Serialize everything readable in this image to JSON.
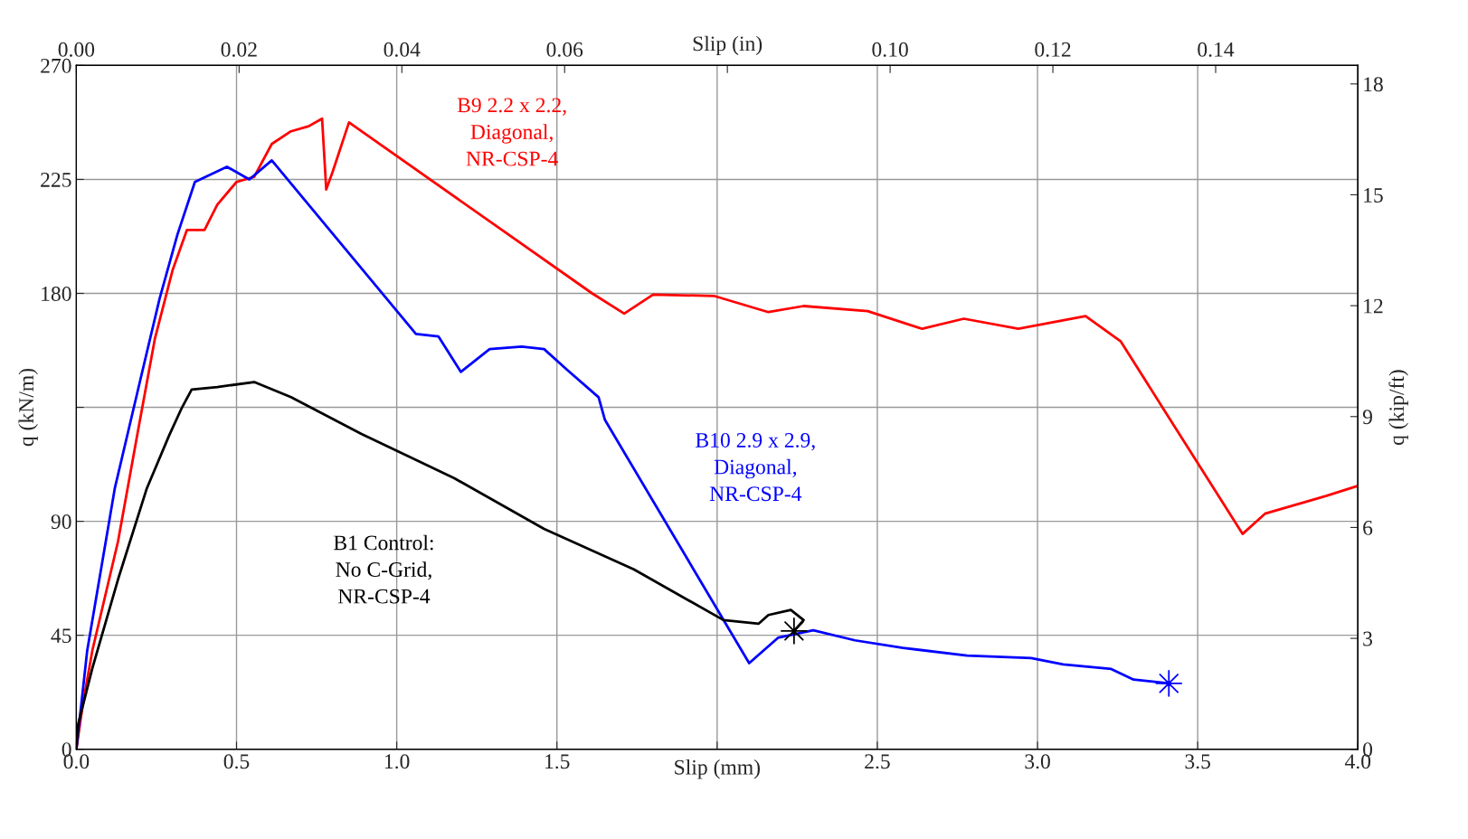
{
  "chart_data": {
    "type": "line",
    "xlabel": "Slip (mm)",
    "ylabel": "q (kN/m)",
    "x2label": "Slip (in)",
    "y2label": "q (kip/ft)",
    "xlim": [
      0,
      4.0
    ],
    "xticks": [
      {
        "value": 0,
        "label": "0.0"
      },
      {
        "value": 0.5,
        "label": "0.5"
      },
      {
        "value": 1.0,
        "label": "1.0"
      },
      {
        "value": 1.5,
        "label": "1.5"
      },
      {
        "value": 2.0,
        "label": null
      },
      {
        "value": 2.5,
        "label": "2.5"
      },
      {
        "value": 3.0,
        "label": "3.0"
      },
      {
        "value": 3.5,
        "label": "3.5"
      },
      {
        "value": 4.0,
        "label": "4.0"
      }
    ],
    "x2lim": [
      0,
      0.15748
    ],
    "x2ticks": [
      {
        "value": 0,
        "label": "0.00"
      },
      {
        "value": 0.02,
        "label": "0.02"
      },
      {
        "value": 0.04,
        "label": "0.04"
      },
      {
        "value": 0.06,
        "label": "0.06"
      },
      {
        "value": 0.08,
        "label": null
      },
      {
        "value": 0.1,
        "label": "0.10"
      },
      {
        "value": 0.12,
        "label": "0.12"
      },
      {
        "value": 0.14,
        "label": "0.14"
      }
    ],
    "ylim": [
      0,
      270
    ],
    "yticks": [
      0,
      45,
      90,
      {
        "value": 135,
        "label": null
      },
      180,
      225,
      270
    ],
    "y2lim": [
      0,
      18.5
    ],
    "y2ticks": [
      0,
      3,
      6,
      9,
      12,
      15,
      18
    ],
    "grid": true,
    "legend": false,
    "line_style": "solid",
    "series": [
      {
        "name": "B9 2.2 x 2.2,\nDiagonal,\nNR-CSP-4",
        "color": "#ff0000",
        "x": [
          0,
          0.02,
          0.05,
          0.13,
          0.19,
          0.245,
          0.3,
          0.345,
          0.4,
          0.44,
          0.5,
          0.555,
          0.61,
          0.67,
          0.725,
          0.767,
          0.78,
          0.8,
          0.851,
          1.61,
          1.71,
          1.8,
          1.99,
          2.16,
          2.27,
          2.47,
          2.64,
          2.77,
          2.94,
          3.15,
          3.26,
          3.4,
          3.64,
          3.71,
          3.9,
          4.0
        ],
        "values": [
          0,
          17.5,
          39,
          82,
          124,
          162,
          189,
          205,
          205,
          215,
          224,
          226,
          239,
          244,
          246,
          249,
          221,
          228,
          247.5,
          180,
          172,
          179.5,
          179,
          172.6,
          175,
          173,
          166,
          170,
          166,
          171,
          161,
          133,
          85,
          93,
          100,
          104
        ]
      },
      {
        "name": "B10 2.9 x 2.9,\nDiagonal,\nNR-CSP-4",
        "color": "#0000ff",
        "x": [
          0,
          0.034,
          0.12,
          0.2,
          0.26,
          0.315,
          0.37,
          0.47,
          0.54,
          0.61,
          1.06,
          1.13,
          1.2,
          1.29,
          1.39,
          1.46,
          1.53,
          1.63,
          1.65,
          2.1,
          2.19,
          2.3,
          2.43,
          2.58,
          2.78,
          2.98,
          3.08,
          3.23,
          3.3,
          3.41
        ],
        "values": [
          0,
          39,
          103,
          146,
          178,
          203,
          224,
          230,
          225,
          232.5,
          164,
          163,
          149,
          158,
          159,
          158,
          150,
          139,
          130,
          34,
          44,
          47,
          43,
          40,
          37,
          36,
          33.5,
          31.7,
          27.5,
          26
        ]
      },
      {
        "name": "B1 Control:\nNo C-Grid,\nNR-CSP-4",
        "color": "#000000",
        "x": [
          0,
          0.006,
          0.05,
          0.13,
          0.22,
          0.29,
          0.33,
          0.36,
          0.44,
          0.555,
          0.67,
          0.89,
          1.18,
          1.46,
          1.74,
          2.02,
          2.13,
          2.16,
          2.23,
          2.27,
          2.24
        ],
        "values": [
          0,
          10,
          32,
          67,
          103,
          124,
          135,
          142,
          143,
          145,
          139,
          124.5,
          107,
          87,
          71,
          51,
          49.6,
          53,
          55,
          51,
          46.7
        ]
      },
      {
        "type": "scatter",
        "marker": "cross",
        "color": "#000000",
        "x": [
          2.24
        ],
        "values": [
          46.7
        ]
      },
      {
        "type": "scatter",
        "marker": "cross",
        "color": "#0000ff",
        "x": [
          3.41
        ],
        "values": [
          26
        ]
      }
    ]
  }
}
